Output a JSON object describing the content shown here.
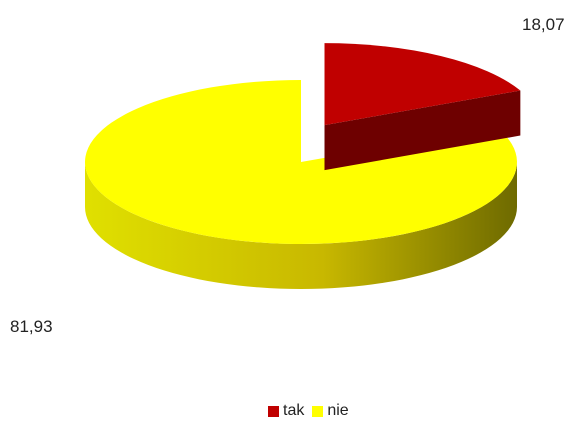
{
  "chart_data": {
    "type": "pie",
    "style": "3d-exploded",
    "slices": [
      {
        "label": "tak",
        "value": 18.07,
        "value_label": "18,07",
        "color": "#c00000",
        "side_color": "#6e0000"
      },
      {
        "label": "nie",
        "value": 81.93,
        "value_label": "81,93",
        "color": "#ffff00",
        "side_color": "#a0a000"
      }
    ],
    "legend_position": "bottom",
    "title": ""
  }
}
